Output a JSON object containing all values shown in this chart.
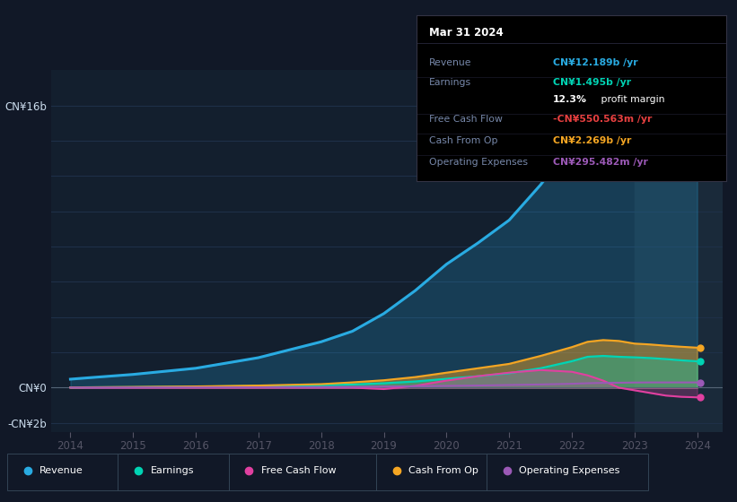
{
  "background_color": "#111827",
  "plot_bg_color": "#131f2e",
  "plot_bg_highlight": "#1a2a3a",
  "years": [
    2014,
    2014.25,
    2015,
    2016,
    2017,
    2018,
    2018.5,
    2019,
    2019.5,
    2020,
    2020.5,
    2021,
    2021.5,
    2022,
    2022.25,
    2022.5,
    2022.75,
    2023,
    2023.25,
    2023.5,
    2023.75,
    2024
  ],
  "revenue": [
    0.48,
    0.55,
    0.75,
    1.1,
    1.7,
    2.6,
    3.2,
    4.2,
    5.5,
    7.0,
    8.2,
    9.5,
    11.5,
    13.8,
    15.2,
    15.6,
    15.2,
    14.8,
    14.0,
    13.5,
    12.8,
    12.19
  ],
  "earnings": [
    0.01,
    0.02,
    0.03,
    0.06,
    0.09,
    0.14,
    0.18,
    0.25,
    0.35,
    0.5,
    0.65,
    0.82,
    1.1,
    1.5,
    1.75,
    1.8,
    1.75,
    1.72,
    1.68,
    1.62,
    1.55,
    1.495
  ],
  "free_cash_flow": [
    0.0,
    0.0,
    0.0,
    0.0,
    0.0,
    0.0,
    0.0,
    -0.08,
    0.1,
    0.4,
    0.65,
    0.85,
    1.0,
    0.9,
    0.7,
    0.4,
    0.0,
    -0.15,
    -0.3,
    -0.45,
    -0.52,
    -0.55
  ],
  "cash_from_op": [
    0.01,
    0.02,
    0.04,
    0.07,
    0.12,
    0.2,
    0.3,
    0.42,
    0.6,
    0.85,
    1.1,
    1.35,
    1.8,
    2.3,
    2.6,
    2.7,
    2.65,
    2.5,
    2.45,
    2.38,
    2.32,
    2.269
  ],
  "operating_expenses": [
    0.005,
    0.007,
    0.01,
    0.015,
    0.02,
    0.03,
    0.04,
    0.06,
    0.08,
    0.1,
    0.12,
    0.15,
    0.18,
    0.22,
    0.25,
    0.27,
    0.28,
    0.29,
    0.295,
    0.295,
    0.295,
    0.295
  ],
  "revenue_color": "#29abe2",
  "earnings_color": "#00d4b4",
  "fcf_color": "#e040a0",
  "cashop_color": "#f5a623",
  "opex_color": "#9b59b6",
  "ylim": [
    -2.5,
    18.0
  ],
  "xlabel_years": [
    2014,
    2015,
    2016,
    2017,
    2018,
    2019,
    2020,
    2021,
    2022,
    2023,
    2024
  ],
  "tooltip_title": "Mar 31 2024",
  "tooltip_rows": [
    {
      "label": "Revenue",
      "value": "CN¥12.189b /yr",
      "value_color": "#29abe2"
    },
    {
      "label": "Earnings",
      "value": "CN¥1.495b /yr",
      "value_color": "#00d4b4"
    },
    {
      "label": "",
      "value": "12.3% profit margin",
      "value_color": "#ffffff"
    },
    {
      "label": "Free Cash Flow",
      "value": "-CN¥550.563m /yr",
      "value_color": "#e84040"
    },
    {
      "label": "Cash From Op",
      "value": "CN¥2.269b /yr",
      "value_color": "#f5a623"
    },
    {
      "label": "Operating Expenses",
      "value": "CN¥295.482m /yr",
      "value_color": "#9b59b6"
    }
  ],
  "legend_items": [
    {
      "label": "Revenue",
      "color": "#29abe2"
    },
    {
      "label": "Earnings",
      "color": "#00d4b4"
    },
    {
      "label": "Free Cash Flow",
      "color": "#e040a0"
    },
    {
      "label": "Cash From Op",
      "color": "#f5a623"
    },
    {
      "label": "Operating Expenses",
      "color": "#9b59b6"
    }
  ]
}
